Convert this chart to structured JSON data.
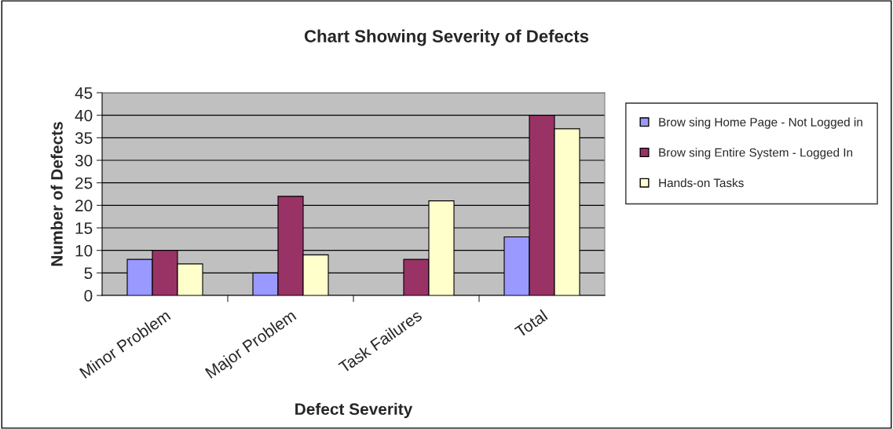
{
  "chart_data": {
    "type": "bar",
    "title": "Chart Showing Severity of Defects",
    "xlabel": "Defect Severity",
    "ylabel": "Number of Defects",
    "categories": [
      "Minor Problem",
      "Major Problem",
      "Task Failures",
      "Total"
    ],
    "series": [
      {
        "name": "Brow sing Home Page - Not Logged in",
        "color": "#9999ff",
        "values": [
          8,
          5,
          null,
          13
        ]
      },
      {
        "name": "Brow sing Entire System - Logged In",
        "color": "#993366",
        "values": [
          10,
          22,
          8,
          40
        ]
      },
      {
        "name": "Hands-on Tasks",
        "color": "#ffffcc",
        "values": [
          7,
          9,
          21,
          37
        ]
      }
    ],
    "ylim": [
      0,
      45
    ],
    "yticks": [
      0,
      5,
      10,
      15,
      20,
      25,
      30,
      35,
      40,
      45
    ],
    "grid": "y",
    "legend": "right"
  }
}
